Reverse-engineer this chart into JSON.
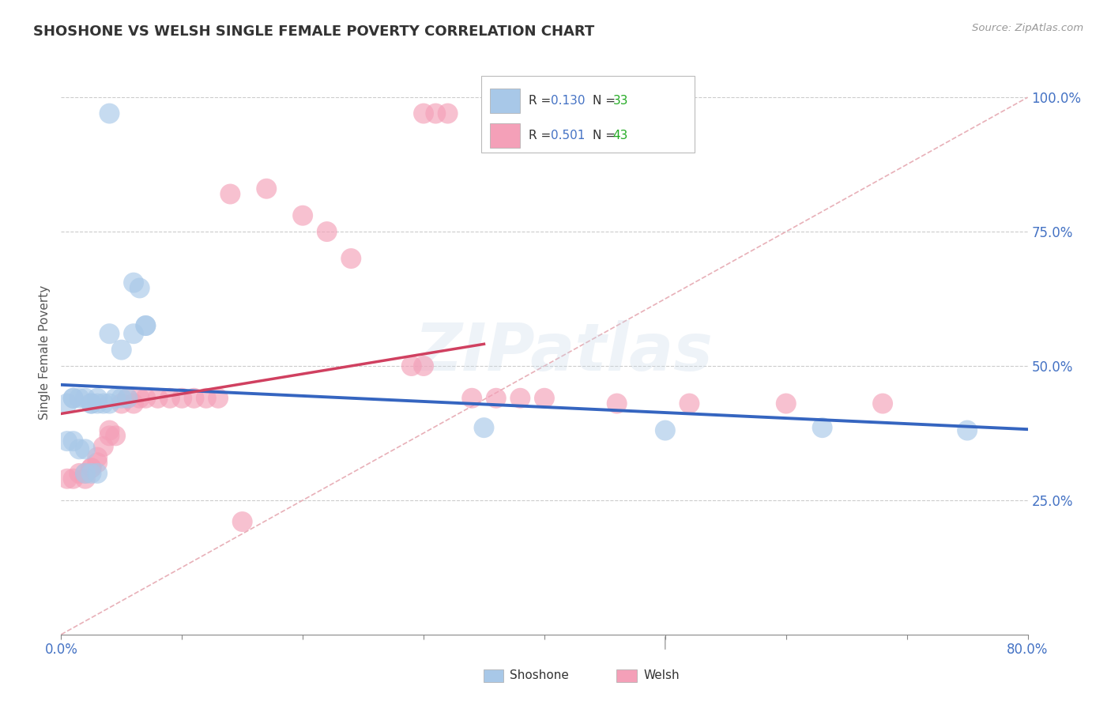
{
  "title": "SHOSHONE VS WELSH SINGLE FEMALE POVERTY CORRELATION CHART",
  "source": "Source: ZipAtlas.com",
  "ylabel": "Single Female Poverty",
  "shoshone_R": 0.13,
  "shoshone_N": 33,
  "welsh_R": 0.501,
  "welsh_N": 43,
  "shoshone_color": "#a8c8e8",
  "welsh_color": "#f4a0b8",
  "shoshone_line_color": "#3565c0",
  "welsh_line_color": "#d04060",
  "diagonal_color": "#e8b0b8",
  "background_color": "#ffffff",
  "grid_color": "#cccccc",
  "title_color": "#333333",
  "axis_tick_color": "#4472c4",
  "legend_r_color": "#4472c4",
  "legend_n_color": "#22aa22",
  "right_y_labels": [
    "",
    "25.0%",
    "50.0%",
    "75.0%",
    "100.0%"
  ],
  "ytick_positions": [
    0.0,
    0.25,
    0.5,
    0.75,
    1.0
  ],
  "xlim": [
    0.0,
    0.8
  ],
  "ylim": [
    0.0,
    1.05
  ],
  "watermark": "ZIPatlas",
  "shoshone_x": [
    0.04,
    0.06,
    0.065,
    0.005,
    0.01,
    0.01,
    0.015,
    0.02,
    0.025,
    0.025,
    0.03,
    0.03,
    0.035,
    0.04,
    0.045,
    0.05,
    0.055,
    0.005,
    0.01,
    0.015,
    0.02,
    0.02,
    0.025,
    0.03,
    0.35,
    0.5,
    0.63,
    0.75,
    0.04,
    0.05,
    0.06,
    0.07,
    0.07
  ],
  "shoshone_y": [
    0.97,
    0.655,
    0.645,
    0.43,
    0.44,
    0.44,
    0.44,
    0.44,
    0.43,
    0.43,
    0.43,
    0.44,
    0.43,
    0.43,
    0.44,
    0.44,
    0.44,
    0.36,
    0.36,
    0.345,
    0.345,
    0.3,
    0.3,
    0.3,
    0.385,
    0.38,
    0.385,
    0.38,
    0.56,
    0.53,
    0.56,
    0.575,
    0.575
  ],
  "welsh_x": [
    0.3,
    0.31,
    0.32,
    0.005,
    0.01,
    0.015,
    0.02,
    0.02,
    0.025,
    0.025,
    0.03,
    0.03,
    0.035,
    0.04,
    0.04,
    0.045,
    0.05,
    0.055,
    0.06,
    0.065,
    0.07,
    0.08,
    0.09,
    0.1,
    0.11,
    0.12,
    0.13,
    0.14,
    0.15,
    0.17,
    0.2,
    0.22,
    0.24,
    0.29,
    0.3,
    0.34,
    0.36,
    0.38,
    0.4,
    0.46,
    0.52,
    0.6,
    0.68
  ],
  "welsh_y": [
    0.97,
    0.97,
    0.97,
    0.29,
    0.29,
    0.3,
    0.3,
    0.29,
    0.31,
    0.31,
    0.32,
    0.33,
    0.35,
    0.38,
    0.37,
    0.37,
    0.43,
    0.44,
    0.43,
    0.44,
    0.44,
    0.44,
    0.44,
    0.44,
    0.44,
    0.44,
    0.44,
    0.82,
    0.21,
    0.83,
    0.78,
    0.75,
    0.7,
    0.5,
    0.5,
    0.44,
    0.44,
    0.44,
    0.44,
    0.43,
    0.43,
    0.43,
    0.43
  ]
}
